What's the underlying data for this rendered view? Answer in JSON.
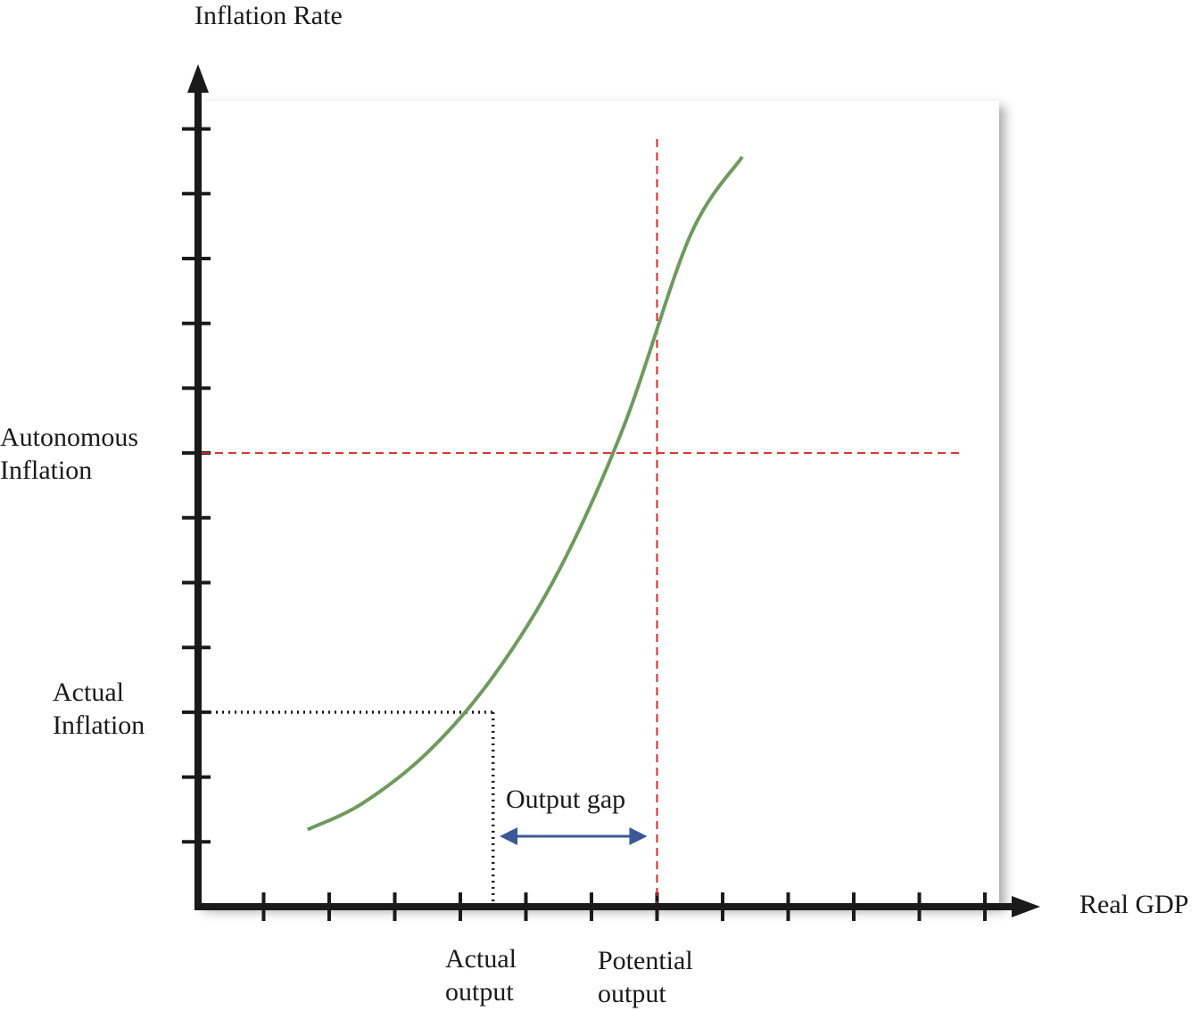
{
  "chart_data": {
    "type": "line",
    "title": "",
    "xlabel": "Real GDP",
    "ylabel": "Inflation Rate",
    "xlim": [
      0,
      12
    ],
    "ylim": [
      0,
      12.4
    ],
    "x_tick_count": 12,
    "y_tick_count": 12,
    "grid": false,
    "series": [
      {
        "x": [
          1.67,
          2.5,
          3.5,
          4.5,
          5.5,
          6.5,
          7.5,
          8.3
        ],
        "y": [
          1.19,
          1.59,
          2.38,
          3.55,
          5.18,
          7.43,
          10.34,
          11.57
        ],
        "color": "#6f9a5e"
      }
    ],
    "reference_lines": {
      "autonomous_inflation": {
        "y": 7.0,
        "label_lines": [
          "Autonomous",
          "Inflation"
        ],
        "color": "#d42a2a",
        "style": "dashed"
      },
      "potential_output": {
        "x": 7.0,
        "label_lines": [
          "Potential",
          "output"
        ],
        "color": "#d42a2a",
        "style": "dashed"
      },
      "actual_inflation": {
        "y": 3.0,
        "label_lines": [
          "Actual",
          "Inflation"
        ],
        "color": "#1a1a1a",
        "style": "dotted"
      },
      "actual_output": {
        "x": 4.5,
        "label_lines": [
          "Actual",
          "output"
        ],
        "color": "#1a1a1a",
        "style": "dotted"
      }
    },
    "annotations": {
      "output_gap": {
        "text": "Output gap",
        "from_x": 4.6,
        "to_x": 6.85,
        "y": 1.1,
        "color": "#3b5998"
      }
    }
  }
}
